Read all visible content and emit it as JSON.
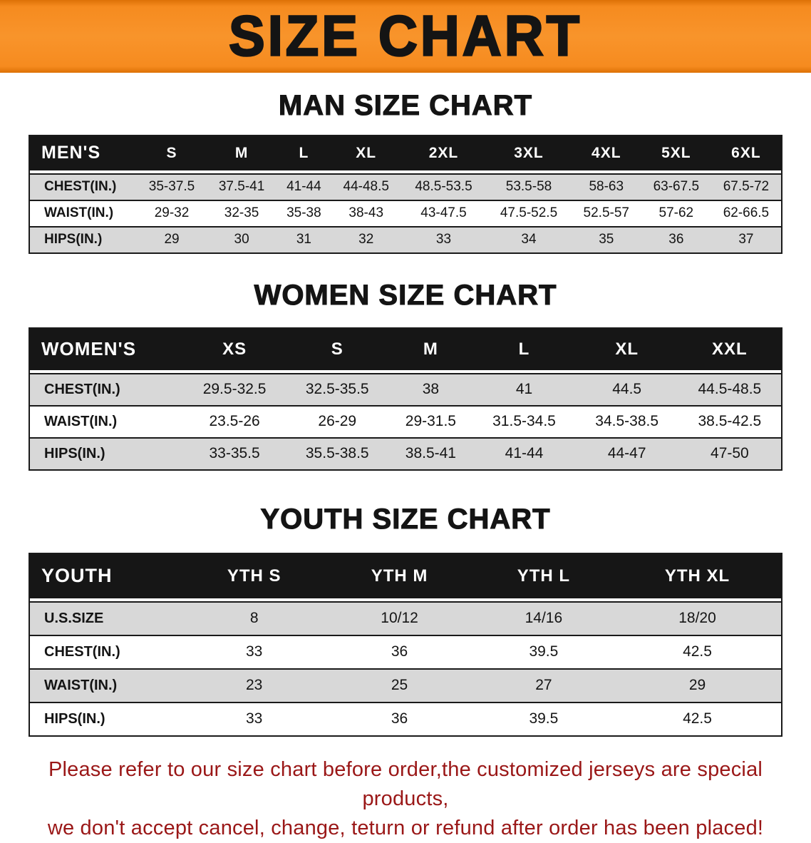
{
  "banner": {
    "title": "SIZE CHART",
    "background_color": "#F68B1F",
    "text_color": "#141414"
  },
  "sections": [
    {
      "id": "men",
      "heading": "MAN SIZE CHART",
      "table": {
        "header": [
          "MEN'S",
          "S",
          "M",
          "L",
          "XL",
          "2XL",
          "3XL",
          "4XL",
          "5XL",
          "6XL"
        ],
        "rows": [
          [
            "CHEST(IN.)",
            "35-37.5",
            "37.5-41",
            "41-44",
            "44-48.5",
            "48.5-53.5",
            "53.5-58",
            "58-63",
            "63-67.5",
            "67.5-72"
          ],
          [
            "WAIST(IN.)",
            "29-32",
            "32-35",
            "35-38",
            "38-43",
            "43-47.5",
            "47.5-52.5",
            "52.5-57",
            "57-62",
            "62-66.5"
          ],
          [
            "HIPS(IN.)",
            "29",
            "30",
            "31",
            "32",
            "33",
            "34",
            "35",
            "36",
            "37"
          ]
        ]
      }
    },
    {
      "id": "women",
      "heading": "WOMEN SIZE CHART",
      "table": {
        "header": [
          "WOMEN'S",
          "XS",
          "S",
          "M",
          "L",
          "XL",
          "XXL"
        ],
        "rows": [
          [
            "CHEST(IN.)",
            "29.5-32.5",
            "32.5-35.5",
            "38",
            "41",
            "44.5",
            "44.5-48.5"
          ],
          [
            "WAIST(IN.)",
            "23.5-26",
            "26-29",
            "29-31.5",
            "31.5-34.5",
            "34.5-38.5",
            "38.5-42.5"
          ],
          [
            "HIPS(IN.)",
            "33-35.5",
            "35.5-38.5",
            "38.5-41",
            "41-44",
            "44-47",
            "47-50"
          ]
        ]
      }
    },
    {
      "id": "youth",
      "heading": "YOUTH SIZE CHART",
      "table": {
        "header": [
          "YOUTH",
          "YTH S",
          "YTH M",
          "YTH L",
          "YTH XL"
        ],
        "rows": [
          [
            "U.S.SIZE",
            "8",
            "10/12",
            "14/16",
            "18/20"
          ],
          [
            "CHEST(IN.)",
            "33",
            "36",
            "39.5",
            "42.5"
          ],
          [
            "WAIST(IN.)",
            "23",
            "25",
            "27",
            "29"
          ],
          [
            "HIPS(IN.)",
            "33",
            "36",
            "39.5",
            "42.5"
          ]
        ]
      }
    }
  ],
  "disclaimer": {
    "line1": "Please refer to our size chart before order,the customized jerseys are special products,",
    "line2": "we don't accept cancel, change, teturn or refund after order has been placed!",
    "text_color": "#9A1717"
  }
}
